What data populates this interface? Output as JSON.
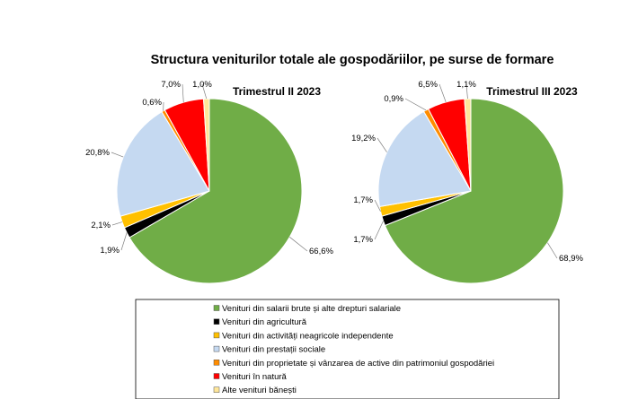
{
  "chart_data": {
    "type": "pie",
    "title": "Structura veniturilor totale ale gospodăriilor, pe surse de formare",
    "legend_position": "bottom",
    "categories": [
      "Venituri din salarii brute și alte drepturi salariale",
      "Venituri din agricultură",
      "Venituri din activități neagricole independente",
      "Venituri din prestații sociale",
      "Venituri din proprietate și vânzarea de active din patrimoniul gospodăriei",
      "Venituri în natură",
      "Alte venituri bănești"
    ],
    "colors": [
      "#70ad47",
      "#000000",
      "#ffc000",
      "#c5d9f1",
      "#ff8c00",
      "#ff0000",
      "#ffe699"
    ],
    "series": [
      {
        "name": "Trimestrul  II 2023",
        "values": [
          66.6,
          1.9,
          2.1,
          20.8,
          0.6,
          7.0,
          1.0
        ],
        "labels": [
          "66,6%",
          "1,9%",
          "2,1%",
          "20,8%",
          "0,6%",
          "7,0%",
          "1,0%"
        ]
      },
      {
        "name": "Trimestrul  III 2023",
        "values": [
          68.9,
          1.7,
          1.7,
          19.2,
          0.9,
          6.5,
          1.1
        ],
        "labels": [
          "68,9%",
          "1,7%",
          "1,7%",
          "19,2%",
          "0,9%",
          "6,5%",
          "1,1%"
        ]
      }
    ]
  }
}
